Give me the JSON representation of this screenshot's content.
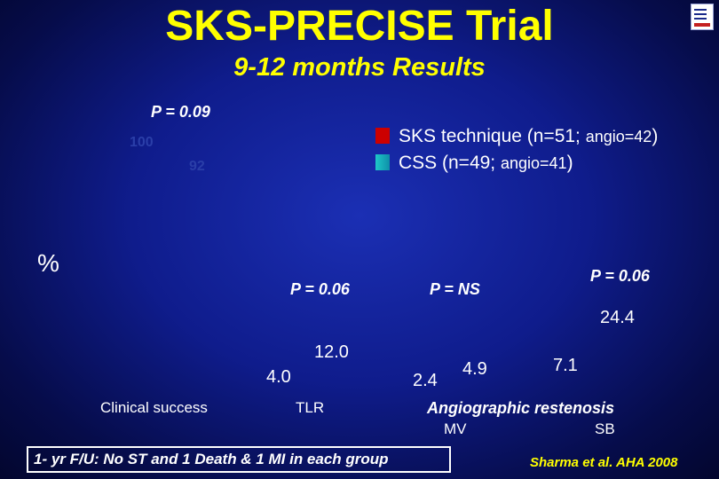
{
  "title": "SKS-PRECISE Trial",
  "subtitle": "9-12 months Results",
  "y_unit": "%",
  "legend": [
    {
      "label": "SKS technique (n=51; ",
      "small": "angio=42",
      "end": ")",
      "color": "#cc0000"
    },
    {
      "label": "CSS (n=49; ",
      "small": "angio=41",
      "end": ")",
      "color": "#1ec8c8"
    }
  ],
  "p_values": {
    "clinical_success": "P = 0.09",
    "tlr": "P = 0.06",
    "mv": "P = NS",
    "sb": "P = 0.06"
  },
  "footnote": "1- yr F/U: No ST and 1 Death & 1 MI in each group",
  "citation": "Sharma et al. AHA 2008",
  "chart_data": {
    "type": "bar",
    "title": "9-12 months Results",
    "ylabel": "%",
    "series": [
      {
        "name": "SKS technique (n=51; angio=42)",
        "color": "#cc0000"
      },
      {
        "name": "CSS (n=49; angio=41)",
        "color": "#1ec8c8"
      }
    ],
    "groups": [
      {
        "category": "Clinical success",
        "values": [
          100,
          92
        ],
        "labels": [
          "100",
          "92"
        ]
      },
      {
        "category": "TLR",
        "values": [
          4.0,
          12.0
        ],
        "labels": [
          "4.0",
          "12.0"
        ]
      },
      {
        "category": "Angiographic restenosis MV",
        "values": [
          2.4,
          4.9
        ],
        "labels": [
          "2.4",
          "4.9"
        ]
      },
      {
        "category": "Angiographic restenosis SB",
        "values": [
          24.4,
          7.1
        ],
        "labels": [
          "24.4",
          "7.1"
        ]
      }
    ],
    "category_labels": {
      "clinical_success": "Clinical success",
      "tlr": "TLR",
      "angio_title": "Angiographic restenosis",
      "mv": "MV",
      "sb": "SB"
    }
  }
}
